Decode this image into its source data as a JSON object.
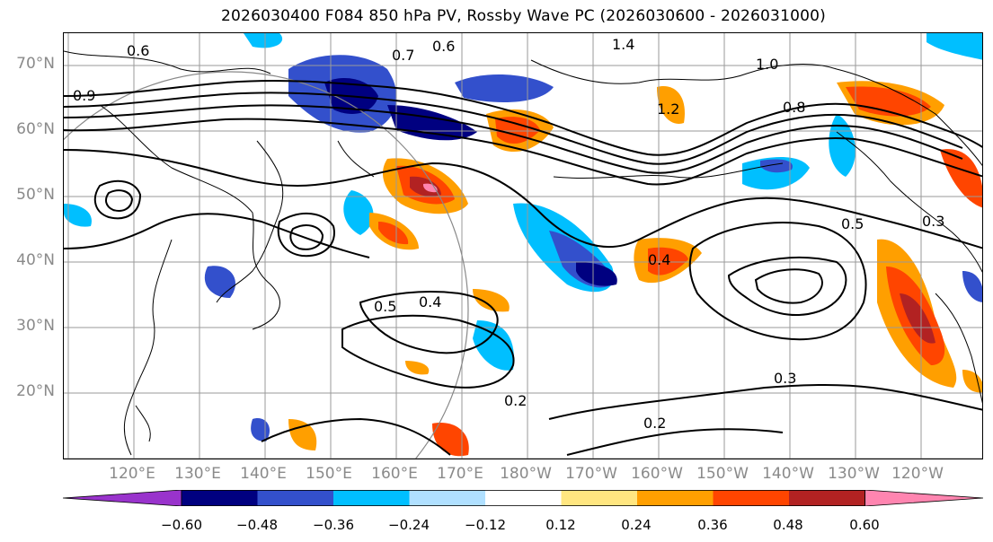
{
  "title": "2026030400 F084 850 hPa PV, Rossby Wave PC (2026030600 - 2026031000)",
  "lat_labels": [
    "70°N",
    "60°N",
    "50°N",
    "40°N",
    "30°N",
    "20°N"
  ],
  "lon_labels": [
    "120°E",
    "130°E",
    "140°E",
    "150°E",
    "160°E",
    "170°E",
    "180°W",
    "170°W",
    "160°W",
    "150°W",
    "140°W",
    "130°W",
    "120°W"
  ],
  "contour_labels": [
    "1.4",
    "1.0",
    "0.6",
    "0.7",
    "0.8",
    "0.5",
    "0.4",
    "0.3",
    "0.2",
    "1.2",
    "0.9",
    "0.6",
    "0.5",
    "0.4",
    "0.3",
    "0.2"
  ],
  "colorbar": {
    "colors": [
      "#9933cc",
      "#000080",
      "#3350cc",
      "#00bfff",
      "#b0e0ff",
      "#ffffff",
      "#ffe680",
      "#ff9f00",
      "#ff4500",
      "#b22222",
      "#ff85b0"
    ],
    "ticks": [
      "−0.60",
      "−0.48",
      "−0.36",
      "−0.24",
      "−0.12",
      "0.12",
      "0.24",
      "0.36",
      "0.48",
      "0.60"
    ]
  },
  "grid": "on"
}
